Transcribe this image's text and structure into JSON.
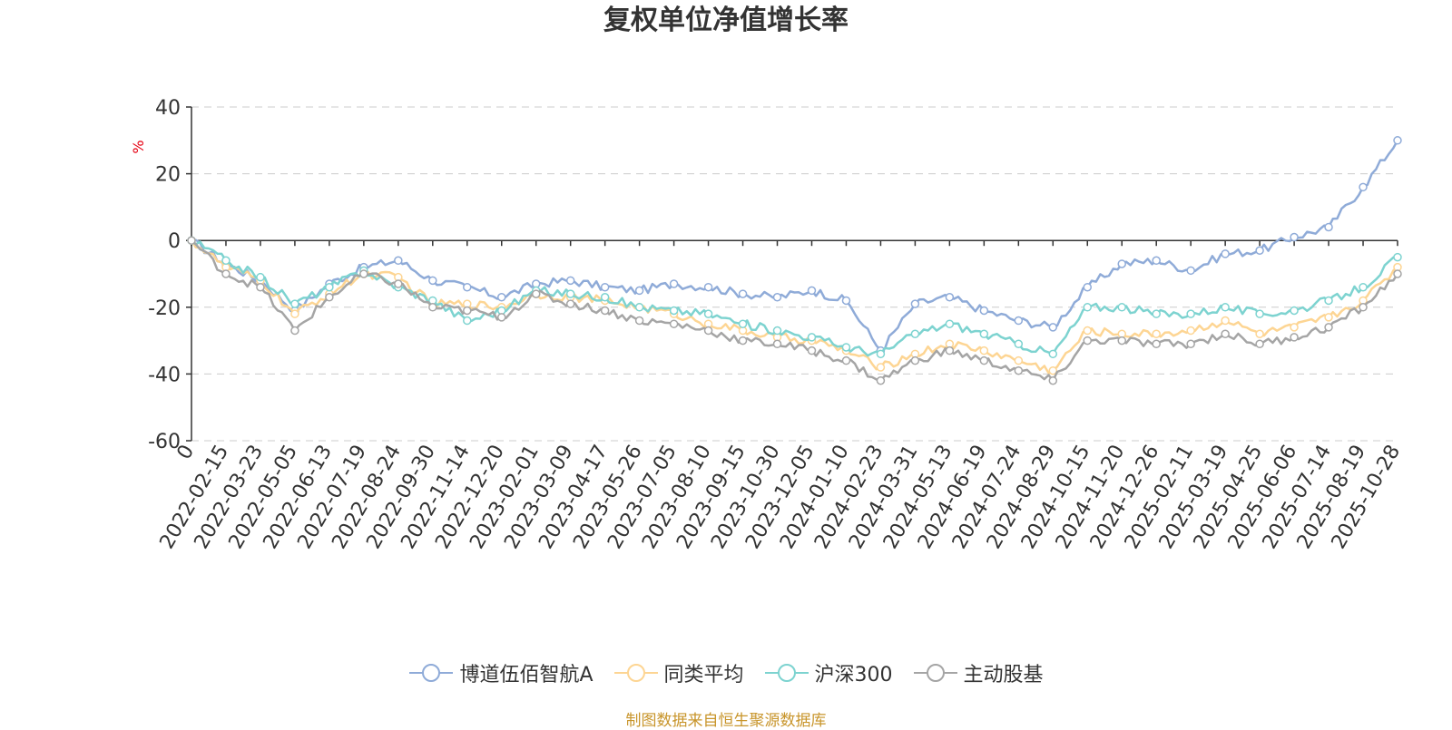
{
  "chart_data": {
    "type": "line",
    "title": "复权单位净值增长率",
    "ylabel": "%",
    "xlabel": "",
    "ylim": [
      -60,
      40
    ],
    "yticks": [
      -60,
      -40,
      -20,
      0,
      20,
      40
    ],
    "grid": true,
    "legend_position": "bottom",
    "categories": [
      "0",
      "2022-02-15",
      "2022-03-23",
      "2022-05-05",
      "2022-06-13",
      "2022-07-19",
      "2022-08-24",
      "2022-09-30",
      "2022-11-14",
      "2022-12-20",
      "2023-02-01",
      "2023-03-09",
      "2023-04-17",
      "2023-05-26",
      "2023-07-05",
      "2023-08-10",
      "2023-09-15",
      "2023-10-30",
      "2023-12-05",
      "2024-01-10",
      "2024-02-23",
      "2024-03-31",
      "2024-05-13",
      "2024-06-19",
      "2024-07-24",
      "2024-08-29",
      "2024-10-15",
      "2024-11-20",
      "2024-12-26",
      "2025-02-11",
      "2025-03-19",
      "2025-04-25",
      "2025-06-06",
      "2025-07-14",
      "2025-08-19",
      "2025-10-28"
    ],
    "series": [
      {
        "name": "博道伍佰智航A",
        "color": "#8fabd8",
        "values": [
          0,
          -7,
          -12,
          -21,
          -13,
          -8,
          -6,
          -12,
          -14,
          -17,
          -13,
          -12,
          -14,
          -15,
          -13,
          -14,
          -16,
          -17,
          -15,
          -18,
          -33,
          -19,
          -17,
          -21,
          -24,
          -26,
          -14,
          -7,
          -6,
          -9,
          -4,
          -3,
          1,
          4,
          16,
          30
        ]
      },
      {
        "name": "同类平均",
        "color": "#fdd593",
        "values": [
          0,
          -8,
          -12,
          -22,
          -16,
          -10,
          -11,
          -19,
          -19,
          -20,
          -16,
          -17,
          -18,
          -20,
          -22,
          -25,
          -27,
          -29,
          -30,
          -33,
          -38,
          -34,
          -31,
          -33,
          -36,
          -39,
          -27,
          -28,
          -28,
          -27,
          -24,
          -28,
          -26,
          -23,
          -18,
          -8
        ]
      },
      {
        "name": "沪深300",
        "color": "#7dd3d0",
        "values": [
          0,
          -6,
          -11,
          -19,
          -14,
          -9,
          -14,
          -18,
          -24,
          -21,
          -15,
          -16,
          -17,
          -20,
          -21,
          -22,
          -25,
          -27,
          -29,
          -32,
          -34,
          -28,
          -25,
          -28,
          -31,
          -34,
          -20,
          -20,
          -22,
          -22,
          -20,
          -22,
          -21,
          -18,
          -14,
          -5
        ]
      },
      {
        "name": "主动股基",
        "color": "#a5a5a5",
        "values": [
          0,
          -10,
          -14,
          -27,
          -17,
          -10,
          -13,
          -20,
          -21,
          -23,
          -16,
          -19,
          -21,
          -24,
          -25,
          -27,
          -30,
          -31,
          -33,
          -36,
          -42,
          -36,
          -33,
          -36,
          -39,
          -42,
          -30,
          -30,
          -31,
          -31,
          -28,
          -31,
          -29,
          -26,
          -20,
          -10
        ]
      }
    ]
  },
  "source_note": "制图数据来自恒生聚源数据库"
}
